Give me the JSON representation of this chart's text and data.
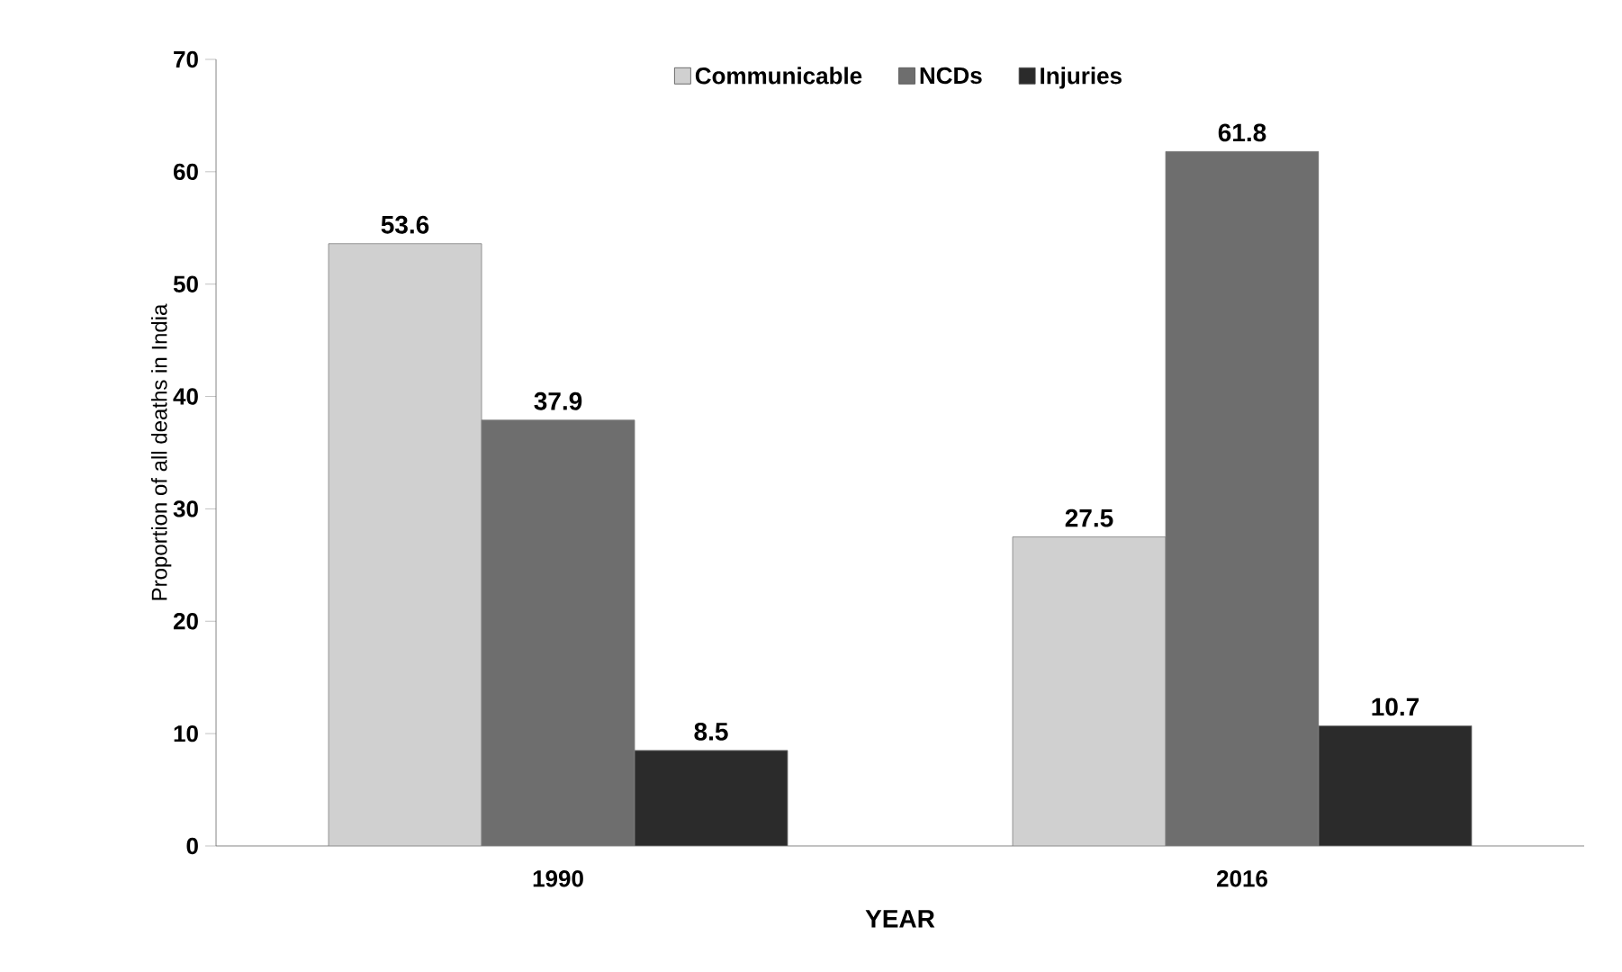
{
  "chart_data": {
    "type": "bar",
    "xlabel": "YEAR",
    "ylabel": "Proportion of all deaths in India",
    "categories": [
      "1990",
      "2016"
    ],
    "series": [
      {
        "name": "Communicable",
        "color": "#d0d0d0",
        "values": [
          53.6,
          27.5
        ]
      },
      {
        "name": "NCDs",
        "color": "#6e6e6e",
        "values": [
          37.9,
          61.8
        ]
      },
      {
        "name": "Injuries",
        "color": "#2b2b2b",
        "values": [
          8.5,
          10.7
        ]
      }
    ],
    "ylim": [
      0,
      70
    ],
    "yticks": [
      0,
      10,
      20,
      30,
      40,
      50,
      60,
      70
    ],
    "grid": false,
    "legend": "top",
    "data_labels": true
  }
}
